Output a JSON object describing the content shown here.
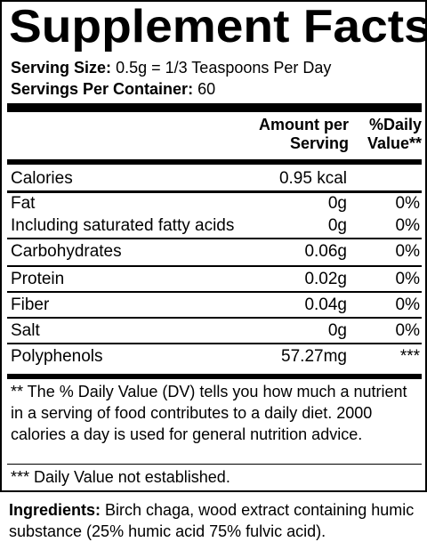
{
  "title": "Supplement Facts",
  "serving_size": {
    "label": "Serving Size:",
    "value": "0.5g = 1/3 Teaspoons Per Day"
  },
  "servings_per_container": {
    "label": "Servings Per Container:",
    "value": "60"
  },
  "header": {
    "amount_line1": "Amount per",
    "amount_line2": "Serving",
    "dv_line1": "%Daily",
    "dv_line2": "Value**"
  },
  "rows": [
    {
      "name": "Calories",
      "amount": "0.95 kcal",
      "dv": ""
    },
    {
      "name": "Fat",
      "amount": "0g",
      "dv": "0%"
    },
    {
      "name": "Including saturated fatty acids",
      "amount": "0g",
      "dv": "0%"
    },
    {
      "name": "Carbohydrates",
      "amount": "0.06g",
      "dv": "0%"
    },
    {
      "name": "Protein",
      "amount": "0.02g",
      "dv": "0%"
    },
    {
      "name": "Fiber",
      "amount": "0.04g",
      "dv": "0%"
    },
    {
      "name": "Salt",
      "amount": "0g",
      "dv": "0%"
    },
    {
      "name": "Polyphenols",
      "amount": "57.27mg",
      "dv": "***"
    }
  ],
  "footnote_dv": "** The % Daily Value (DV) tells you how much a nutrient in a serving of food contributes to a daily diet. 2000 calories a day is used for general nutrition advice.",
  "footnote_na": "*** Daily Value not established.",
  "ingredients": {
    "label": "Ingredients:",
    "text": "Birch chaga, wood extract containing humic substance (25% humic acid 75% fulvic acid)."
  }
}
